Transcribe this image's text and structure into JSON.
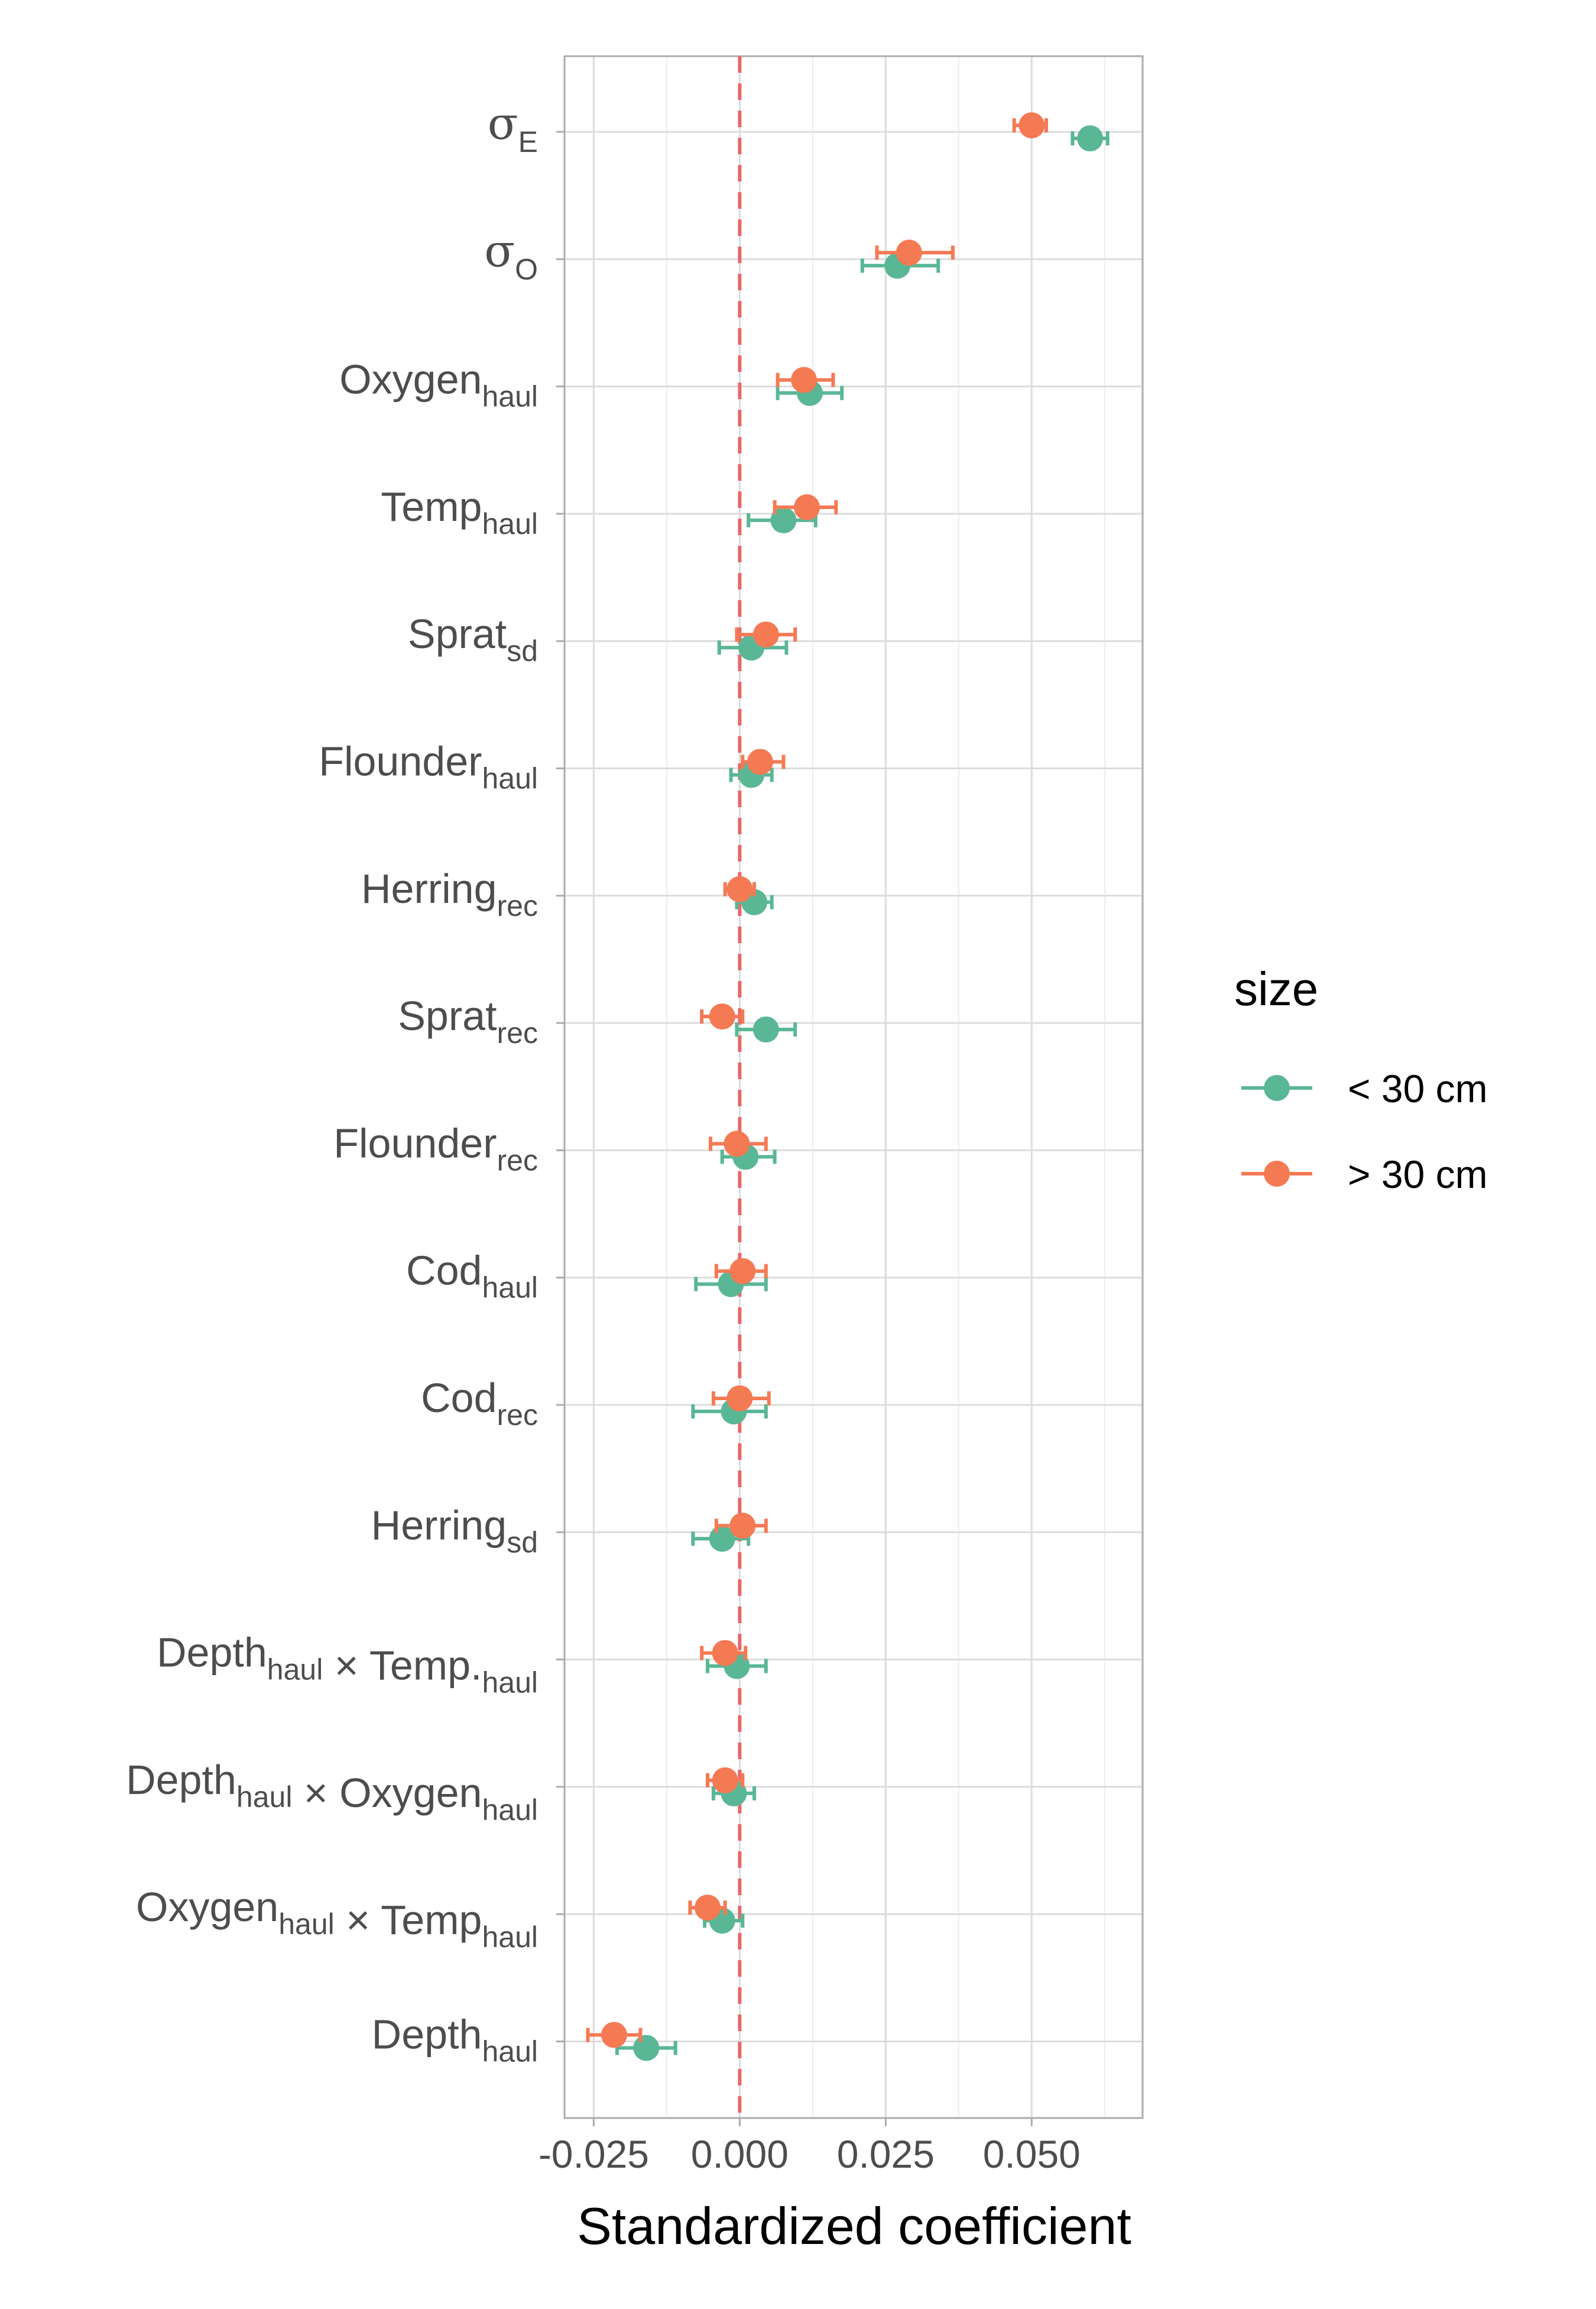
{
  "chart_data": {
    "type": "scatter",
    "subtype": "coefficient-plot-with-error-bars",
    "title": "",
    "xlabel": "Standardized coefficient",
    "ylabel": "",
    "xlim": [
      -0.03,
      0.069
    ],
    "x_ticks": [
      "-0.025",
      "0.000",
      "0.025",
      "0.050"
    ],
    "x_tick_values": [
      -0.025,
      0.0,
      0.025,
      0.05
    ],
    "reference_line": {
      "x": 0,
      "style": "dashed",
      "color": "#e8696b"
    },
    "grid": true,
    "legend": {
      "title": "size",
      "position": "right",
      "entries": [
        "< 30 cm",
        "> 30 cm"
      ]
    },
    "categories": [
      {
        "base": "σ",
        "sub": "E"
      },
      {
        "base": "σ",
        "sub": "O"
      },
      {
        "base": "Oxygen",
        "sub": "haul"
      },
      {
        "base": "Temp",
        "sub": "haul"
      },
      {
        "base": "Sprat",
        "sub": "sd"
      },
      {
        "base": "Flounder",
        "sub": "haul"
      },
      {
        "base": "Herring",
        "sub": "rec"
      },
      {
        "base": "Sprat",
        "sub": "rec"
      },
      {
        "base": "Flounder",
        "sub": "rec"
      },
      {
        "base": "Cod",
        "sub": "haul"
      },
      {
        "base": "Cod",
        "sub": "rec"
      },
      {
        "base": "Herring",
        "sub": "sd"
      },
      {
        "parts": [
          [
            "Depth",
            "haul"
          ],
          [
            " × Temp.",
            "haul"
          ]
        ]
      },
      {
        "parts": [
          [
            "Depth",
            "haul"
          ],
          [
            " × Oxygen",
            "haul"
          ]
        ]
      },
      {
        "parts": [
          [
            "Oxygen",
            "haul"
          ],
          [
            " × Temp",
            "haul"
          ]
        ]
      },
      {
        "base": "Depth",
        "sub": "haul"
      }
    ],
    "series": [
      {
        "name": "< 30 cm",
        "color": "#5ab795",
        "estimate": [
          0.06,
          0.027,
          0.012,
          0.0075,
          0.002,
          0.002,
          0.0025,
          0.0045,
          0.001,
          -0.0015,
          -0.001,
          -0.003,
          -0.0005,
          -0.001,
          -0.003,
          -0.016
        ],
        "lower": [
          0.057,
          0.021,
          0.0065,
          0.0015,
          -0.0035,
          -0.0015,
          -0.0005,
          -0.0005,
          -0.003,
          -0.0075,
          -0.008,
          -0.008,
          -0.0055,
          -0.0045,
          -0.006,
          -0.021
        ],
        "upper": [
          0.063,
          0.034,
          0.0175,
          0.013,
          0.008,
          0.0055,
          0.0055,
          0.0095,
          0.006,
          0.0045,
          0.0045,
          0.0015,
          0.0045,
          0.0025,
          0.0005,
          -0.011
        ]
      },
      {
        "name": "> 30 cm",
        "color": "#f47a54",
        "estimate": [
          0.05,
          0.029,
          0.011,
          0.0115,
          0.0045,
          0.0035,
          0.0,
          -0.003,
          -0.0005,
          0.0005,
          0.0,
          0.0005,
          -0.0025,
          -0.0025,
          -0.0055,
          -0.0215
        ],
        "lower": [
          0.047,
          0.0235,
          0.0065,
          0.006,
          -0.0005,
          0.0005,
          -0.0025,
          -0.0065,
          -0.005,
          -0.004,
          -0.0045,
          -0.004,
          -0.0065,
          -0.0055,
          -0.0085,
          -0.026
        ],
        "upper": [
          0.0525,
          0.0365,
          0.016,
          0.0165,
          0.0095,
          0.0075,
          0.0025,
          0.0005,
          0.0045,
          0.0045,
          0.005,
          0.0045,
          0.001,
          0.0005,
          -0.0025,
          -0.017
        ]
      }
    ]
  }
}
